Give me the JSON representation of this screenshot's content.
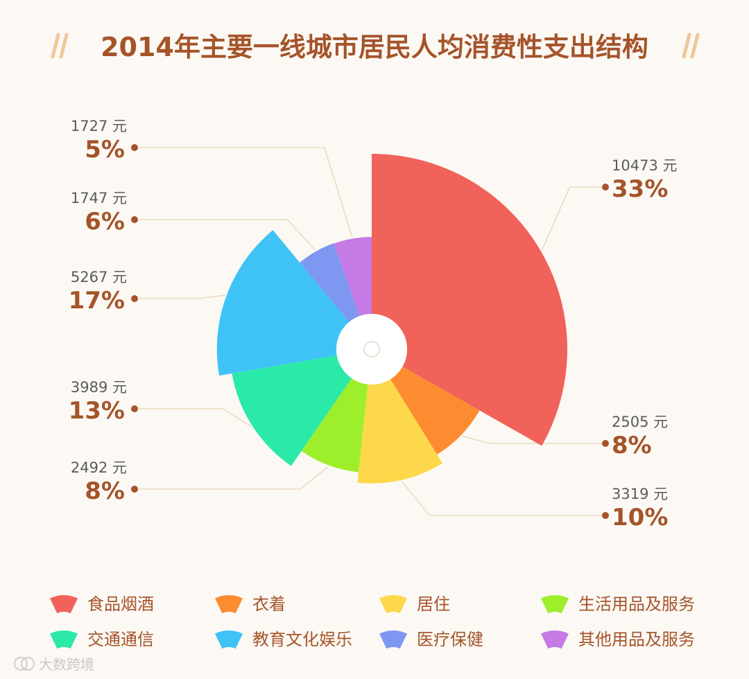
{
  "page": {
    "title": "2014年主要一线城市居民人均消费性支出结构",
    "watermark": "大数跨境"
  },
  "colors": {
    "background": "#fcf9f4",
    "accent": "#a5542a",
    "leader_line": "#ecd9bf",
    "title_slash": "#f0c69a"
  },
  "chart_data": {
    "type": "pie",
    "variant": "rose",
    "title": "2014年主要一线城市居民人均消费性支出结构",
    "unit": "元",
    "legend_position": "bottom",
    "series": [
      {
        "name": "食品烟酒",
        "value": 10473,
        "percent": "33%",
        "color": "#f0625a"
      },
      {
        "name": "衣着",
        "value": 2505,
        "percent": "8%",
        "color": "#fd8b30"
      },
      {
        "name": "居住",
        "value": 3319,
        "percent": "10%",
        "color": "#fcd84a"
      },
      {
        "name": "生活用品及服务",
        "value": 2492,
        "percent": "8%",
        "color": "#9def2c"
      },
      {
        "name": "交通通信",
        "value": 3989,
        "percent": "13%",
        "color": "#2be9a8"
      },
      {
        "name": "教育文化娱乐",
        "value": 5267,
        "percent": "17%",
        "color": "#3fc3f7"
      },
      {
        "name": "医疗保健",
        "value": 1747,
        "percent": "6%",
        "color": "#7e97f0"
      },
      {
        "name": "其他用品及服务",
        "value": 1727,
        "percent": "5%",
        "color": "#c57ae6"
      }
    ]
  }
}
